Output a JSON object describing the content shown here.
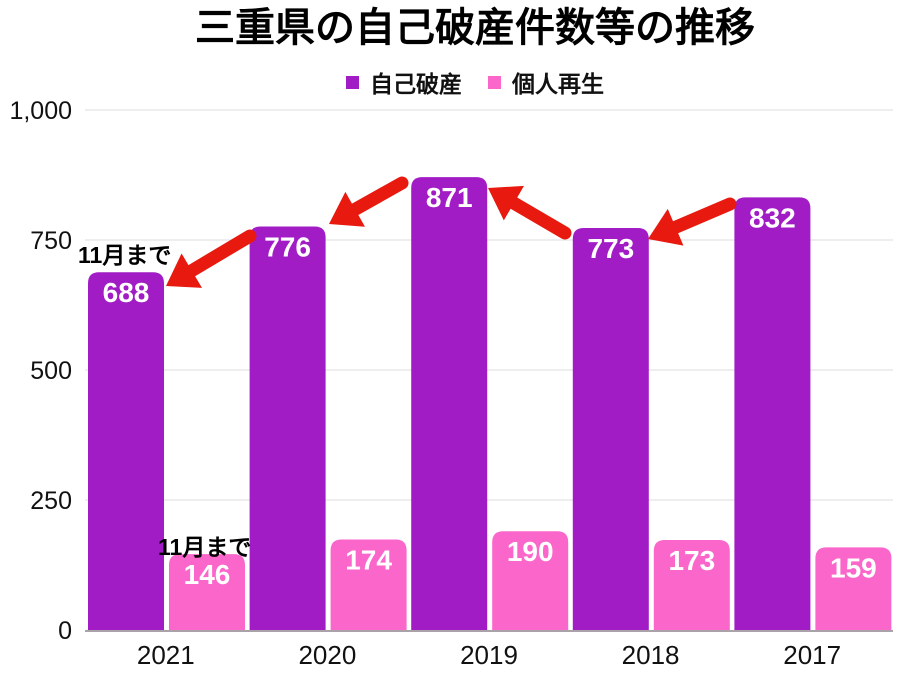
{
  "chart_data": {
    "type": "bar",
    "title": "三重県の自己破産件数等の推移",
    "categories": [
      "2021",
      "2020",
      "2019",
      "2018",
      "2017"
    ],
    "series": [
      {
        "key": "jiko-hasan",
        "name": "自己破産",
        "color": "#A21CC6",
        "values": [
          688,
          776,
          871,
          773,
          832
        ]
      },
      {
        "key": "kojin-saisei",
        "name": "個人再生",
        "color": "#FA66CA",
        "values": [
          146,
          174,
          190,
          173,
          159
        ]
      }
    ],
    "ylim": [
      0,
      1000
    ],
    "yticks": [
      0,
      250,
      500,
      750,
      1000
    ],
    "ytick_labels": [
      "0",
      "250",
      "500",
      "750",
      "1,000"
    ],
    "xlabel": "",
    "ylabel": "",
    "grid": true,
    "legend_position": "top-center",
    "bar_label_color": "#FFFFFF",
    "annotations": [
      {
        "text": "11月まで",
        "x": 78,
        "y": 263
      },
      {
        "text": "11月まで",
        "x": 158,
        "y": 555
      }
    ],
    "arrows": [
      {
        "tail": [
          250,
          236
        ],
        "head": [
          166,
          286
        ]
      },
      {
        "tail": [
          402,
          183
        ],
        "head": [
          329,
          224
        ]
      },
      {
        "tail": [
          565,
          233
        ],
        "head": [
          488,
          188
        ]
      },
      {
        "tail": [
          730,
          204
        ],
        "head": [
          648,
          239
        ]
      }
    ],
    "colors": {
      "arrow": "#E8190E",
      "grid": "#DCDCDC",
      "axis": "#A9A2A9",
      "tick_text": "#111111",
      "background": "#FFFFFF"
    }
  }
}
